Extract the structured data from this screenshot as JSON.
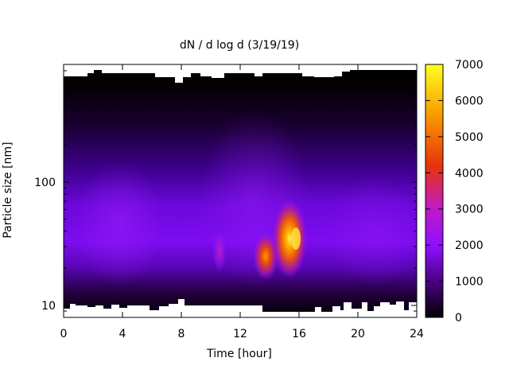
{
  "chart_data": {
    "type": "heatmap",
    "title": "dN / d log d (3/19/19)",
    "xlabel": "Time [hour]",
    "ylabel": "Particle size [nm]",
    "x_range": [
      0,
      24
    ],
    "x_ticks": [
      0,
      4,
      8,
      12,
      16,
      20,
      24
    ],
    "y_range": [
      8,
      900
    ],
    "y_scale": "log",
    "y_tick_labels": [
      {
        "value": 10,
        "label": "10"
      },
      {
        "value": 100,
        "label": "100"
      }
    ],
    "colorbar": {
      "range": [
        0,
        7000
      ],
      "ticks": [
        0,
        1000,
        2000,
        3000,
        4000,
        5000,
        6000,
        7000
      ],
      "colormap": [
        "#000000",
        "#4a0080",
        "#8d10ff",
        "#c01ac8",
        "#e8330a",
        "#f99a00",
        "#ffff20"
      ]
    },
    "features": [
      {
        "x_hour": 10.5,
        "size_nm": 30,
        "peak": 1800
      },
      {
        "x_hour": 13.5,
        "size_nm": 28,
        "peak": 4300
      },
      {
        "x_hour": 15.7,
        "size_nm": 35,
        "peak": 5800
      }
    ]
  }
}
